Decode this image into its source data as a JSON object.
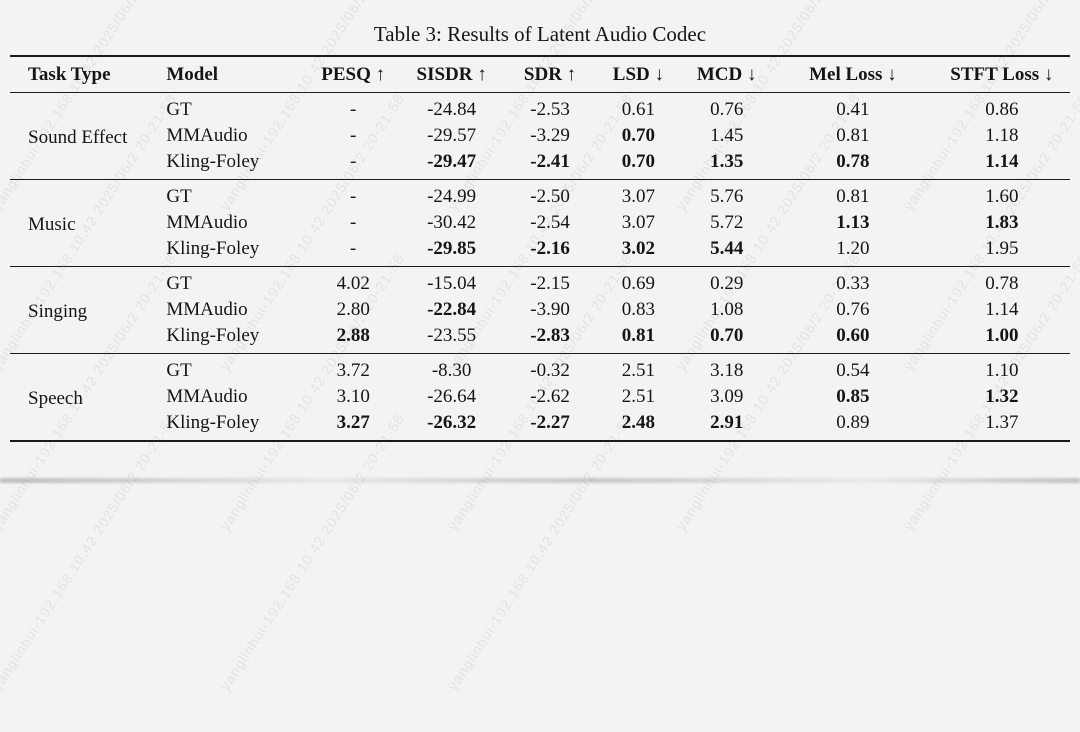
{
  "caption": "Table 3: Results of Latent Audio Codec",
  "watermark": {
    "text": "yanglinhui-192.168.10.42 2025/06/2 20-21-58"
  },
  "table": {
    "columns": [
      "Task Type",
      "Model",
      "PESQ ↑",
      "SISDR ↑",
      "SDR ↑",
      "LSD ↓",
      "MCD ↓",
      "Mel Loss ↓",
      "STFT Loss ↓"
    ],
    "groups": [
      {
        "task": "Sound Effect",
        "rows": [
          {
            "model": "GT",
            "values": [
              "-",
              "-24.84",
              "-2.53",
              "0.61",
              "0.76",
              "0.41",
              "0.86"
            ],
            "bold": []
          },
          {
            "model": "MMAudio",
            "values": [
              "-",
              "-29.57",
              "-3.29",
              "0.70",
              "1.45",
              "0.81",
              "1.18"
            ],
            "bold": [
              3
            ]
          },
          {
            "model": "Kling-Foley",
            "values": [
              "-",
              "-29.47",
              "-2.41",
              "0.70",
              "1.35",
              "0.78",
              "1.14"
            ],
            "bold": [
              1,
              2,
              3,
              4,
              5,
              6
            ]
          }
        ]
      },
      {
        "task": "Music",
        "rows": [
          {
            "model": "GT",
            "values": [
              "-",
              "-24.99",
              "-2.50",
              "3.07",
              "5.76",
              "0.81",
              "1.60"
            ],
            "bold": []
          },
          {
            "model": "MMAudio",
            "values": [
              "-",
              "-30.42",
              "-2.54",
              "3.07",
              "5.72",
              "1.13",
              "1.83"
            ],
            "bold": [
              5,
              6
            ]
          },
          {
            "model": "Kling-Foley",
            "values": [
              "-",
              "-29.85",
              "-2.16",
              "3.02",
              "5.44",
              "1.20",
              "1.95"
            ],
            "bold": [
              1,
              2,
              3,
              4
            ]
          }
        ]
      },
      {
        "task": "Singing",
        "rows": [
          {
            "model": "GT",
            "values": [
              "4.02",
              "-15.04",
              "-2.15",
              "0.69",
              "0.29",
              "0.33",
              "0.78"
            ],
            "bold": []
          },
          {
            "model": "MMAudio",
            "values": [
              "2.80",
              "-22.84",
              "-3.90",
              "0.83",
              "1.08",
              "0.76",
              "1.14"
            ],
            "bold": [
              1
            ]
          },
          {
            "model": "Kling-Foley",
            "values": [
              "2.88",
              "-23.55",
              "-2.83",
              "0.81",
              "0.70",
              "0.60",
              "1.00"
            ],
            "bold": [
              0,
              2,
              3,
              4,
              5,
              6
            ]
          }
        ]
      },
      {
        "task": "Speech",
        "rows": [
          {
            "model": "GT",
            "values": [
              "3.72",
              "-8.30",
              "-0.32",
              "2.51",
              "3.18",
              "0.54",
              "1.10"
            ],
            "bold": []
          },
          {
            "model": "MMAudio",
            "values": [
              "3.10",
              "-26.64",
              "-2.62",
              "2.51",
              "3.09",
              "0.85",
              "1.32"
            ],
            "bold": [
              5,
              6
            ]
          },
          {
            "model": "Kling-Foley",
            "values": [
              "3.27",
              "-26.32",
              "-2.27",
              "2.48",
              "2.91",
              "0.89",
              "1.37"
            ],
            "bold": [
              0,
              1,
              2,
              3,
              4
            ]
          }
        ]
      }
    ]
  }
}
